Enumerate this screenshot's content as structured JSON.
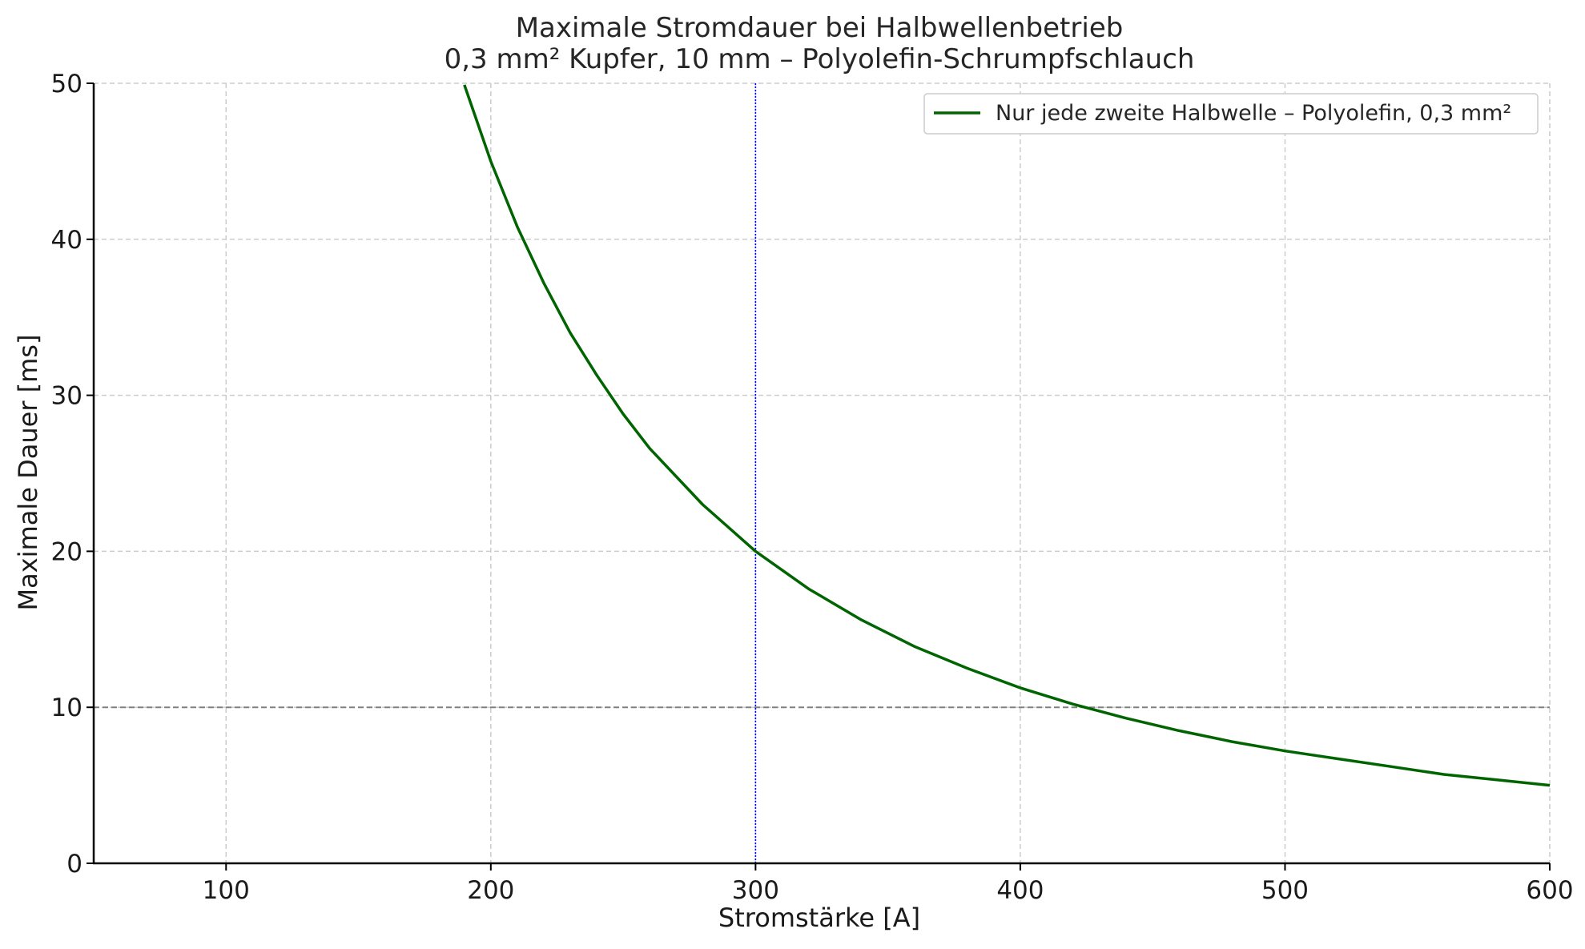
{
  "chart_data": {
    "type": "line",
    "title": "Maximale Stromdauer bei Halbwellenbetrieb",
    "subtitle": "0,3 mm² Kupfer, 10 mm – Polyolefin-Schrumpfschlauch",
    "xlabel": "Stromstärke [A]",
    "ylabel": "Maximale Dauer [ms]",
    "xlim": [
      50,
      600
    ],
    "ylim": [
      0,
      50
    ],
    "xticks": [
      100,
      200,
      300,
      400,
      500,
      600
    ],
    "yticks": [
      0,
      10,
      20,
      30,
      40,
      50
    ],
    "grid": true,
    "legend_position": "top-right",
    "series": [
      {
        "name": "Nur jede zweite Halbwelle – Polyolefin, 0,3 mm²",
        "color": "#006400",
        "x": [
          190,
          200,
          210,
          220,
          230,
          240,
          250,
          260,
          280,
          300,
          320,
          340,
          360,
          380,
          400,
          420,
          440,
          460,
          480,
          500,
          520,
          540,
          560,
          580,
          600
        ],
        "y": [
          49.9,
          45.0,
          40.8,
          37.2,
          34.0,
          31.3,
          28.8,
          26.6,
          23.0,
          20.0,
          17.6,
          15.6,
          13.9,
          12.5,
          11.25,
          10.2,
          9.3,
          8.5,
          7.8,
          7.2,
          6.7,
          6.2,
          5.7,
          5.35,
          5.0
        ]
      }
    ],
    "reference_lines": [
      {
        "orientation": "horizontal",
        "value": 10,
        "color": "#808080",
        "style": "dashed"
      },
      {
        "orientation": "vertical",
        "value": 300,
        "color": "#0000ff",
        "style": "dotted"
      }
    ]
  }
}
